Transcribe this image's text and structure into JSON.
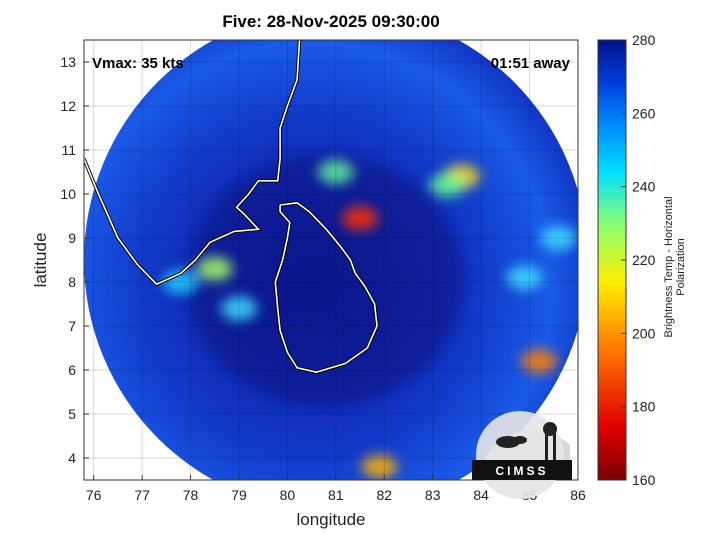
{
  "title": "Five: 28-Nov-2025 09:30:00",
  "annotations": {
    "vmax": "Vmax: 35 kts",
    "time_away": "01:51 away"
  },
  "axes": {
    "xlabel": "longitude",
    "ylabel": "latitude",
    "xlim": [
      75.8,
      86
    ],
    "ylim": [
      3.5,
      13.5
    ],
    "xticks": [
      "76",
      "77",
      "78",
      "79",
      "80",
      "81",
      "82",
      "83",
      "84",
      "85",
      "86"
    ],
    "yticks": [
      "4",
      "5",
      "6",
      "7",
      "8",
      "9",
      "10",
      "11",
      "12",
      "13"
    ],
    "grid": true
  },
  "colorbar": {
    "label": "Brightness Temp - Horizontal Polarization",
    "ticks": [
      "160",
      "180",
      "200",
      "220",
      "240",
      "260",
      "280"
    ],
    "range": [
      160,
      280
    ],
    "colors": [
      "#7a0000",
      "#e00000",
      "#ff7a00",
      "#ffee00",
      "#8aff70",
      "#00e0ff",
      "#0090ff",
      "#0040e0",
      "#00108a"
    ]
  },
  "logo": {
    "text": "CIMSS"
  },
  "colors": {
    "background_scene": "#0c1e9e",
    "coastline": "#ffffff"
  },
  "map": {
    "scan_center": [
      81.0,
      8.5
    ],
    "scan_radius_deg": 5.2,
    "warm_spots": [
      {
        "lon": 78.5,
        "lat": 8.3,
        "color": "#a6ff60"
      },
      {
        "lon": 77.8,
        "lat": 8.0,
        "color": "#20d0ff"
      },
      {
        "lon": 79.0,
        "lat": 7.4,
        "color": "#40e0ff"
      },
      {
        "lon": 81.5,
        "lat": 9.45,
        "color": "#ff3000"
      },
      {
        "lon": 83.6,
        "lat": 10.4,
        "color": "#ffe000"
      },
      {
        "lon": 83.3,
        "lat": 10.2,
        "color": "#60ff90"
      },
      {
        "lon": 81.0,
        "lat": 10.5,
        "color": "#60f0a0"
      },
      {
        "lon": 85.2,
        "lat": 6.2,
        "color": "#ff8000"
      },
      {
        "lon": 81.9,
        "lat": 3.8,
        "color": "#ffb000"
      },
      {
        "lon": 84.9,
        "lat": 8.1,
        "color": "#40e0ff"
      },
      {
        "lon": 85.6,
        "lat": 9.0,
        "color": "#40e0ff"
      }
    ],
    "coastlines": [
      {
        "name": "india-east-coast",
        "points": [
          [
            80.25,
            13.5
          ],
          [
            80.2,
            12.6
          ],
          [
            80.0,
            12.0
          ],
          [
            79.85,
            11.5
          ],
          [
            79.85,
            10.8
          ],
          [
            79.8,
            10.3
          ],
          [
            79.4,
            10.3
          ],
          [
            79.2,
            10.0
          ],
          [
            78.95,
            9.7
          ],
          [
            79.1,
            9.55
          ],
          [
            79.4,
            9.2
          ],
          [
            78.9,
            9.15
          ],
          [
            78.4,
            8.9
          ],
          [
            78.1,
            8.5
          ],
          [
            77.8,
            8.2
          ],
          [
            77.3,
            7.95
          ],
          [
            76.9,
            8.4
          ],
          [
            76.5,
            9.0
          ],
          [
            76.3,
            9.5
          ],
          [
            76.1,
            10.0
          ],
          [
            75.8,
            10.8
          ]
        ]
      },
      {
        "name": "sri-lanka",
        "points": [
          [
            79.85,
            9.75
          ],
          [
            80.2,
            9.8
          ],
          [
            80.45,
            9.6
          ],
          [
            80.8,
            9.2
          ],
          [
            81.1,
            8.8
          ],
          [
            81.3,
            8.5
          ],
          [
            81.4,
            8.2
          ],
          [
            81.6,
            7.9
          ],
          [
            81.8,
            7.5
          ],
          [
            81.85,
            7.0
          ],
          [
            81.65,
            6.5
          ],
          [
            81.2,
            6.15
          ],
          [
            80.6,
            5.95
          ],
          [
            80.2,
            6.05
          ],
          [
            80.0,
            6.4
          ],
          [
            79.85,
            6.9
          ],
          [
            79.8,
            7.4
          ],
          [
            79.75,
            8.0
          ],
          [
            79.9,
            8.5
          ],
          [
            80.0,
            9.0
          ],
          [
            80.05,
            9.35
          ],
          [
            79.85,
            9.6
          ],
          [
            79.85,
            9.75
          ]
        ]
      }
    ]
  }
}
